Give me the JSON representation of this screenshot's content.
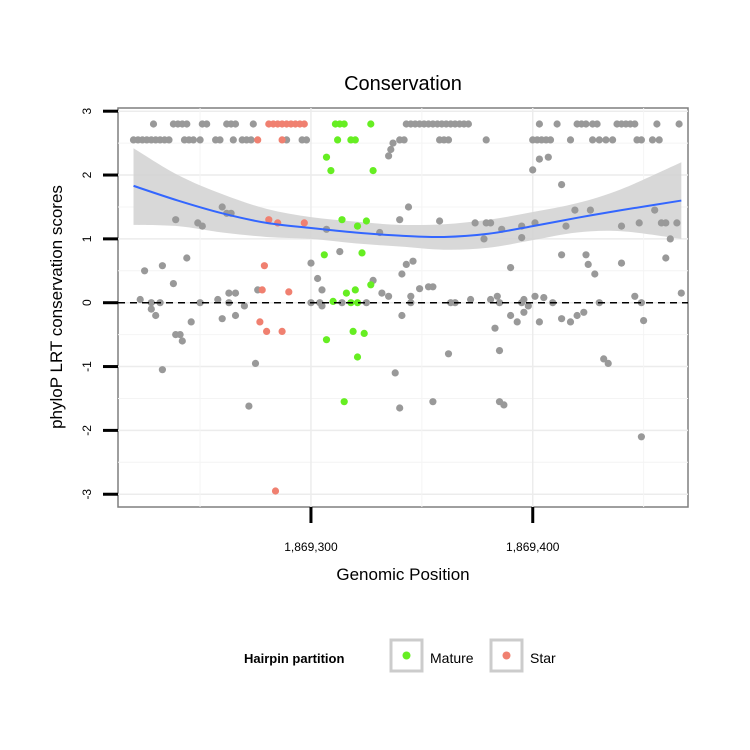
{
  "chart_data": {
    "type": "scatter",
    "title": "Conservation",
    "xlabel": "Genomic Position",
    "ylabel": "phyloP LRT conservation scores",
    "xlim": [
      1869213,
      1869470
    ],
    "ylim": [
      -3.2,
      3.05
    ],
    "x_ticks": [
      1869300,
      1869400
    ],
    "x_tick_labels": [
      "1,869,300",
      "1,869,400"
    ],
    "y_ticks": [
      -3,
      -2,
      -1,
      0,
      1,
      2,
      3
    ],
    "y_tick_labels": [
      "-3",
      "-2",
      "-1",
      "0",
      "1",
      "2",
      "3"
    ],
    "grid": true,
    "reference_line": {
      "y": 0,
      "style": "dashed"
    },
    "legend": {
      "title": "Hairpin partition",
      "position": "bottom",
      "entries": [
        {
          "label": "Mature",
          "color": "#66ee22"
        },
        {
          "label": "Star",
          "color": "#f08070"
        }
      ]
    },
    "colors": {
      "other": "#999999",
      "mature": "#66ee22",
      "star": "#f08070",
      "trend": "#3366ff",
      "band": "#d4d4d4"
    },
    "series": [
      {
        "group": "other",
        "points": [
          [
            1869220,
            2.55
          ],
          [
            1869222,
            2.55
          ],
          [
            1869224,
            2.55
          ],
          [
            1869226,
            2.55
          ],
          [
            1869228,
            2.55
          ],
          [
            1869230,
            2.55
          ],
          [
            1869232,
            2.55
          ],
          [
            1869234,
            2.55
          ],
          [
            1869236,
            2.55
          ],
          [
            1869229,
            2.8
          ],
          [
            1869238,
            2.8
          ],
          [
            1869240,
            2.8
          ],
          [
            1869242,
            2.8
          ],
          [
            1869244,
            2.8
          ],
          [
            1869251,
            2.8
          ],
          [
            1869253,
            2.8
          ],
          [
            1869262,
            2.8
          ],
          [
            1869264,
            2.8
          ],
          [
            1869266,
            2.8
          ],
          [
            1869274,
            2.8
          ],
          [
            1869243,
            2.55
          ],
          [
            1869245,
            2.55
          ],
          [
            1869247,
            2.55
          ],
          [
            1869250,
            2.55
          ],
          [
            1869257,
            2.55
          ],
          [
            1869259,
            2.55
          ],
          [
            1869265,
            2.55
          ],
          [
            1869269,
            2.55
          ],
          [
            1869271,
            2.55
          ],
          [
            1869273,
            2.55
          ],
          [
            1869289,
            2.55
          ],
          [
            1869296,
            2.55
          ],
          [
            1869298,
            2.55
          ],
          [
            1869340,
            2.55
          ],
          [
            1869342,
            2.55
          ],
          [
            1869358,
            2.55
          ],
          [
            1869360,
            2.55
          ],
          [
            1869362,
            2.55
          ],
          [
            1869379,
            2.55
          ],
          [
            1869400,
            2.55
          ],
          [
            1869402,
            2.55
          ],
          [
            1869404,
            2.55
          ],
          [
            1869406,
            2.55
          ],
          [
            1869408,
            2.55
          ],
          [
            1869417,
            2.55
          ],
          [
            1869427,
            2.55
          ],
          [
            1869430,
            2.55
          ],
          [
            1869433,
            2.55
          ],
          [
            1869436,
            2.55
          ],
          [
            1869447,
            2.55
          ],
          [
            1869449,
            2.55
          ],
          [
            1869454,
            2.55
          ],
          [
            1869457,
            2.55
          ],
          [
            1869343,
            2.8
          ],
          [
            1869345,
            2.8
          ],
          [
            1869347,
            2.8
          ],
          [
            1869349,
            2.8
          ],
          [
            1869351,
            2.8
          ],
          [
            1869353,
            2.8
          ],
          [
            1869355,
            2.8
          ],
          [
            1869357,
            2.8
          ],
          [
            1869359,
            2.8
          ],
          [
            1869361,
            2.8
          ],
          [
            1869363,
            2.8
          ],
          [
            1869365,
            2.8
          ],
          [
            1869367,
            2.8
          ],
          [
            1869369,
            2.8
          ],
          [
            1869371,
            2.8
          ],
          [
            1869403,
            2.8
          ],
          [
            1869411,
            2.8
          ],
          [
            1869420,
            2.8
          ],
          [
            1869422,
            2.8
          ],
          [
            1869424,
            2.8
          ],
          [
            1869427,
            2.8
          ],
          [
            1869429,
            2.8
          ],
          [
            1869438,
            2.8
          ],
          [
            1869440,
            2.8
          ],
          [
            1869442,
            2.8
          ],
          [
            1869444,
            2.8
          ],
          [
            1869446,
            2.8
          ],
          [
            1869456,
            2.8
          ],
          [
            1869466,
            2.8
          ],
          [
            1869337,
            2.5
          ],
          [
            1869336,
            2.4
          ],
          [
            1869335,
            2.3
          ],
          [
            1869400,
            2.08
          ],
          [
            1869403,
            2.25
          ],
          [
            1869407,
            2.28
          ],
          [
            1869413,
            1.85
          ],
          [
            1869415,
            1.2
          ],
          [
            1869419,
            1.45
          ],
          [
            1869260,
            1.5
          ],
          [
            1869262,
            1.4
          ],
          [
            1869264,
            1.4
          ],
          [
            1869251,
            1.2
          ],
          [
            1869239,
            1.3
          ],
          [
            1869249,
            1.25
          ],
          [
            1869307,
            1.15
          ],
          [
            1869331,
            1.1
          ],
          [
            1869340,
            1.3
          ],
          [
            1869344,
            1.5
          ],
          [
            1869358,
            1.28
          ],
          [
            1869374,
            1.25
          ],
          [
            1869379,
            1.25
          ],
          [
            1869381,
            1.25
          ],
          [
            1869378,
            1.0
          ],
          [
            1869386,
            1.15
          ],
          [
            1869395,
            1.2
          ],
          [
            1869395,
            1.02
          ],
          [
            1869401,
            1.25
          ],
          [
            1869426,
            1.45
          ],
          [
            1869440,
            1.2
          ],
          [
            1869448,
            1.25
          ],
          [
            1869455,
            1.45
          ],
          [
            1869458,
            1.25
          ],
          [
            1869460,
            1.25
          ],
          [
            1869462,
            1.0
          ],
          [
            1869465,
            1.25
          ],
          [
            1869225,
            0.5
          ],
          [
            1869233,
            0.58
          ],
          [
            1869238,
            0.3
          ],
          [
            1869244,
            0.7
          ],
          [
            1869258,
            0.05
          ],
          [
            1869263,
            0.15
          ],
          [
            1869266,
            0.15
          ],
          [
            1869270,
            -0.05
          ],
          [
            1869276,
            0.2
          ],
          [
            1869300,
            0.62
          ],
          [
            1869303,
            0.38
          ],
          [
            1869305,
            0.2
          ],
          [
            1869313,
            0.8
          ],
          [
            1869328,
            0.35
          ],
          [
            1869332,
            0.15
          ],
          [
            1869335,
            0.1
          ],
          [
            1869341,
            0.45
          ],
          [
            1869343,
            0.6
          ],
          [
            1869345,
            0.1
          ],
          [
            1869346,
            0.65
          ],
          [
            1869349,
            0.22
          ],
          [
            1869353,
            0.25
          ],
          [
            1869355,
            0.25
          ],
          [
            1869372,
            0.05
          ],
          [
            1869384,
            0.1
          ],
          [
            1869390,
            0.55
          ],
          [
            1869396,
            0.05
          ],
          [
            1869401,
            0.1
          ],
          [
            1869405,
            0.08
          ],
          [
            1869413,
            0.75
          ],
          [
            1869424,
            0.75
          ],
          [
            1869425,
            0.6
          ],
          [
            1869428,
            0.45
          ],
          [
            1869440,
            0.62
          ],
          [
            1869446,
            0.1
          ],
          [
            1869449,
            0.0
          ],
          [
            1869460,
            0.7
          ],
          [
            1869467,
            0.15
          ],
          [
            1869223,
            0.05
          ],
          [
            1869228,
            0.0
          ],
          [
            1869232,
            0.0
          ],
          [
            1869250,
            0.0
          ],
          [
            1869260,
            -0.25
          ],
          [
            1869263,
            0.0
          ],
          [
            1869266,
            -0.2
          ],
          [
            1869300,
            0.0
          ],
          [
            1869304,
            0.0
          ],
          [
            1869314,
            0.0
          ],
          [
            1869325,
            0.0
          ],
          [
            1869345,
            0.0
          ],
          [
            1869363,
            0.0
          ],
          [
            1869365,
            0.0
          ],
          [
            1869381,
            0.05
          ],
          [
            1869385,
            0.0
          ],
          [
            1869395,
            0.0
          ],
          [
            1869398,
            -0.05
          ],
          [
            1869409,
            0.0
          ],
          [
            1869430,
            0.0
          ],
          [
            1869228,
            -0.1
          ],
          [
            1869230,
            -0.2
          ],
          [
            1869239,
            -0.5
          ],
          [
            1869241,
            -0.5
          ],
          [
            1869242,
            -0.6
          ],
          [
            1869246,
            -0.3
          ],
          [
            1869275,
            -0.95
          ],
          [
            1869305,
            -0.05
          ],
          [
            1869341,
            -0.2
          ],
          [
            1869383,
            -0.4
          ],
          [
            1869390,
            -0.2
          ],
          [
            1869393,
            -0.3
          ],
          [
            1869403,
            -0.3
          ],
          [
            1869413,
            -0.25
          ],
          [
            1869417,
            -0.3
          ],
          [
            1869420,
            -0.2
          ],
          [
            1869423,
            -0.15
          ],
          [
            1869385,
            -0.75
          ],
          [
            1869362,
            -0.8
          ],
          [
            1869396,
            -0.15
          ],
          [
            1869233,
            -1.05
          ],
          [
            1869272,
            -1.62
          ],
          [
            1869338,
            -1.1
          ],
          [
            1869340,
            -1.65
          ],
          [
            1869355,
            -1.55
          ],
          [
            1869385,
            -1.55
          ],
          [
            1869387,
            -1.6
          ],
          [
            1869432,
            -0.88
          ],
          [
            1869434,
            -0.95
          ],
          [
            1869450,
            -0.28
          ],
          [
            1869449,
            -2.1
          ]
        ]
      },
      {
        "group": "mature",
        "points": [
          [
            1869311,
            2.8
          ],
          [
            1869313,
            2.8
          ],
          [
            1869315,
            2.8
          ],
          [
            1869327,
            2.8
          ],
          [
            1869312,
            2.55
          ],
          [
            1869318,
            2.55
          ],
          [
            1869320,
            2.55
          ],
          [
            1869307,
            2.28
          ],
          [
            1869309,
            2.07
          ],
          [
            1869328,
            2.07
          ],
          [
            1869314,
            1.3
          ],
          [
            1869321,
            1.2
          ],
          [
            1869325,
            1.28
          ],
          [
            1869306,
            0.75
          ],
          [
            1869323,
            0.78
          ],
          [
            1869320,
            0.2
          ],
          [
            1869327,
            0.28
          ],
          [
            1869310,
            0.02
          ],
          [
            1869316,
            0.15
          ],
          [
            1869318,
            0.0
          ],
          [
            1869319,
            -0.45
          ],
          [
            1869321,
            0.0
          ],
          [
            1869324,
            -0.48
          ],
          [
            1869307,
            -0.58
          ],
          [
            1869321,
            -0.85
          ],
          [
            1869315,
            -1.55
          ]
        ]
      },
      {
        "group": "star",
        "points": [
          [
            1869276,
            2.55
          ],
          [
            1869281,
            2.8
          ],
          [
            1869283,
            2.8
          ],
          [
            1869285,
            2.8
          ],
          [
            1869287,
            2.8
          ],
          [
            1869289,
            2.8
          ],
          [
            1869291,
            2.8
          ],
          [
            1869293,
            2.8
          ],
          [
            1869295,
            2.8
          ],
          [
            1869297,
            2.8
          ],
          [
            1869287,
            2.55
          ],
          [
            1869281,
            1.3
          ],
          [
            1869285,
            1.25
          ],
          [
            1869297,
            1.25
          ],
          [
            1869279,
            0.58
          ],
          [
            1869278,
            0.2
          ],
          [
            1869290,
            0.17
          ],
          [
            1869277,
            -0.3
          ],
          [
            1869280,
            -0.45
          ],
          [
            1869287,
            -0.45
          ],
          [
            1869284,
            -2.95
          ]
        ]
      }
    ],
    "trend": {
      "x": [
        1869220,
        1869240,
        1869260,
        1869280,
        1869300,
        1869320,
        1869340,
        1869360,
        1869380,
        1869400,
        1869420,
        1869440,
        1869467
      ],
      "y": [
        1.83,
        1.6,
        1.4,
        1.25,
        1.17,
        1.1,
        1.05,
        1.03,
        1.08,
        1.2,
        1.33,
        1.45,
        1.6
      ],
      "lower": [
        1.22,
        1.2,
        1.1,
        1.03,
        1.0,
        0.93,
        0.88,
        0.83,
        0.86,
        0.98,
        1.1,
        1.12,
        1.0
      ],
      "upper": [
        2.42,
        2.0,
        1.7,
        1.47,
        1.34,
        1.27,
        1.22,
        1.23,
        1.3,
        1.42,
        1.56,
        1.78,
        2.2
      ]
    }
  }
}
